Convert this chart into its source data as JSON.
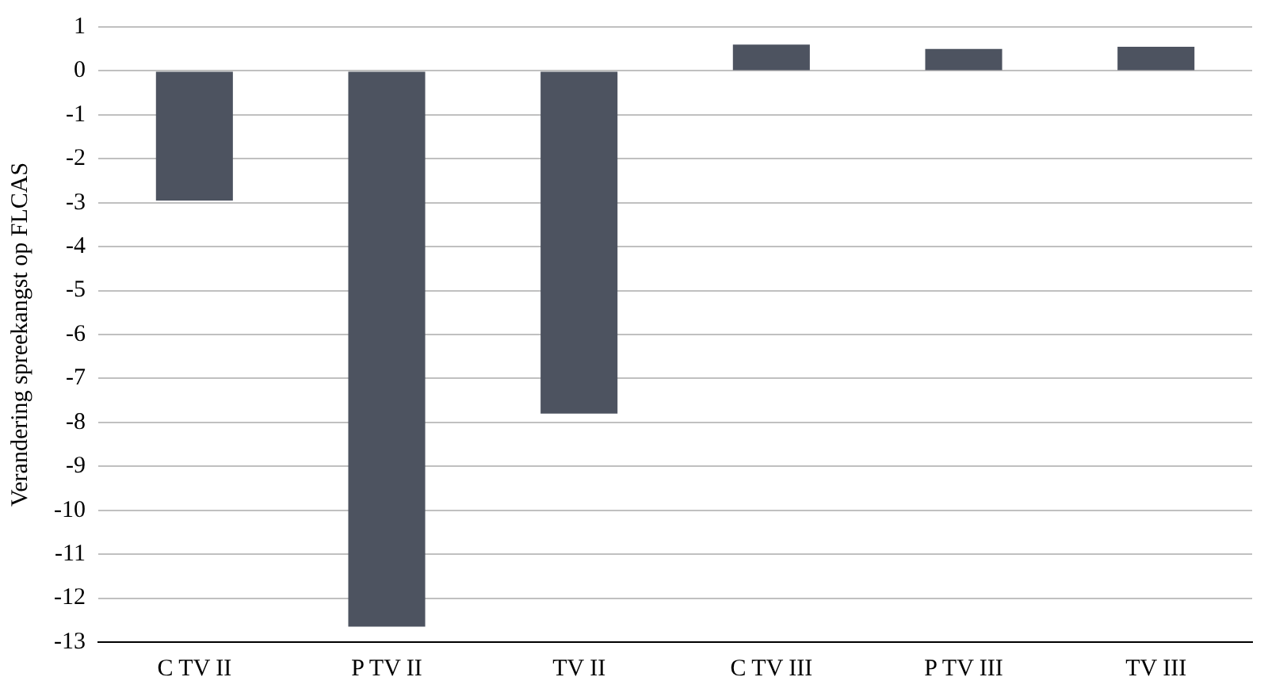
{
  "chart_data": {
    "type": "bar",
    "ylabel": "Verandering spreekangst op FLCAS",
    "categories": [
      "C TV II",
      "P TV II",
      "TV II",
      "C TV III",
      "P TV III",
      "TV III"
    ],
    "series": [
      {
        "color": "#4d5360",
        "values": [
          -2.95,
          -12.65,
          -7.8,
          0.6,
          0.5,
          0.55
        ]
      }
    ],
    "ylim": [
      -13,
      1
    ],
    "yticks": [
      -13,
      -12,
      -11,
      -10,
      -9,
      -8,
      -7,
      -6,
      -5,
      -4,
      -3,
      -2,
      -1,
      0,
      1
    ],
    "grid": "y",
    "legend": false
  }
}
